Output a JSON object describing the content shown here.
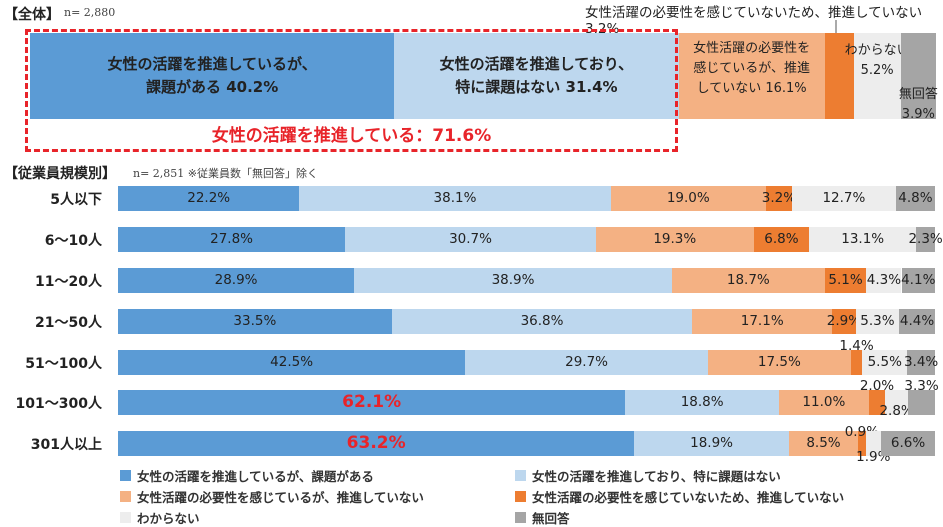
{
  "overall": {
    "title": "【全体】",
    "n": "n= 2,880",
    "segments": [
      {
        "label_lines": [
          "女性の活躍を推進しているが、",
          "課題がある 40.2%"
        ],
        "value": 40.2,
        "color": "#5b9bd5",
        "bold": true
      },
      {
        "label_lines": [
          "女性の活躍を推進しており、",
          "特に課題はない 31.4%"
        ],
        "value": 31.4,
        "color": "#bdd7ee",
        "bold": true
      },
      {
        "label_lines": [
          "女性活躍の必要性を",
          "感じているが、推進",
          "していない 16.1%"
        ],
        "value": 16.1,
        "color": "#f4b183",
        "bold": false
      },
      {
        "label_lines": [],
        "value": 3.2,
        "color": "#ed7d31",
        "bold": false
      },
      {
        "label_lines": [
          "わからない",
          "5.2%"
        ],
        "value": 5.2,
        "color": "#ededed",
        "bold": false
      },
      {
        "label_lines": [
          "無回答",
          "3.9%"
        ],
        "value": 3.9,
        "color": "#a5a5a5",
        "bold": false
      }
    ],
    "callout": "女性活躍の必要性を感じていないため、推進していない 3.2%",
    "sum_label": "女性の活躍を推進している：71.6%"
  },
  "by_size": {
    "title": "【従業員規模別】",
    "n": "n= 2,851 ※従業員数「無回答」除く"
  },
  "chart_data": {
    "type": "bar",
    "orientation": "horizontal-stacked-100",
    "categories": [
      "5人以下",
      "6～10人",
      "11～20人",
      "21～50人",
      "51～100人",
      "101～300人",
      "301人以上"
    ],
    "series": [
      {
        "name": "女性の活躍を推進しているが、課題がある",
        "color": "#5b9bd5",
        "values": [
          22.2,
          27.8,
          28.9,
          33.5,
          42.5,
          62.1,
          63.2
        ]
      },
      {
        "name": "女性の活躍を推進しており、特に課題はない",
        "color": "#bdd7ee",
        "values": [
          38.1,
          30.7,
          38.9,
          36.8,
          29.7,
          18.8,
          18.9
        ]
      },
      {
        "name": "女性活躍の必要性を感じているが、推進していない",
        "color": "#f4b183",
        "values": [
          19.0,
          19.3,
          18.7,
          17.1,
          17.5,
          11.0,
          8.5
        ]
      },
      {
        "name": "女性活躍の必要性を感じていないため、推進していない",
        "color": "#ed7d31",
        "values": [
          3.2,
          6.8,
          5.1,
          2.9,
          1.4,
          2.0,
          0.9
        ]
      },
      {
        "name": "わからない",
        "color": "#ededed",
        "values": [
          12.7,
          13.1,
          4.3,
          5.3,
          5.5,
          2.8,
          1.9
        ]
      },
      {
        "name": "無回答",
        "color": "#a5a5a5",
        "values": [
          4.8,
          2.3,
          4.1,
          4.4,
          3.4,
          3.3,
          6.6
        ]
      }
    ],
    "labels": [
      [
        "22.2%",
        "38.1%",
        "19.0%",
        "3.2%",
        "12.7%",
        "4.8%"
      ],
      [
        "27.8%",
        "30.7%",
        "19.3%",
        "6.8%",
        "13.1%",
        "2.3%"
      ],
      [
        "28.9%",
        "38.9%",
        "18.7%",
        "5.1%",
        "4.3%",
        "4.1%"
      ],
      [
        "33.5%",
        "36.8%",
        "17.1%",
        "2.9%",
        "5.3%",
        "4.4%"
      ],
      [
        "42.5%",
        "29.7%",
        "17.5%",
        "1.4%",
        "5.5%",
        "3.4%"
      ],
      [
        "62.1%",
        "18.8%",
        "11.0%",
        "2.0%",
        "2.8%",
        "3.3%"
      ],
      [
        "63.2%",
        "18.9%",
        "8.5%",
        "0.9%",
        "1.9%",
        "6.6%"
      ]
    ],
    "xlim": [
      0,
      100
    ],
    "legend_position": "bottom"
  }
}
